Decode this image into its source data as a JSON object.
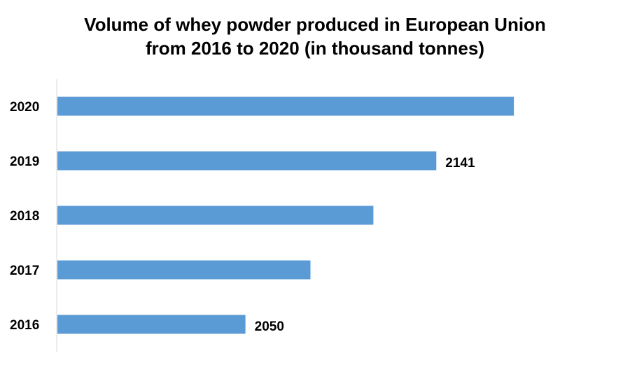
{
  "chart_data": {
    "type": "bar",
    "orientation": "horizontal",
    "title": "Volume of whey powder produced in European Union from 2016 to 2020 (in thousand tonnes)",
    "title_lines": [
      "Volume of whey powder produced in European Union",
      "from 2016 to 2020 (in thousand tonnes)"
    ],
    "categories": [
      "2020",
      "2019",
      "2018",
      "2017",
      "2016"
    ],
    "values": [
      2178,
      2141,
      2111,
      2081,
      2050
    ],
    "data_labels": [
      "",
      "2141",
      "",
      "",
      "2050"
    ],
    "xlim": [
      1960,
      2210
    ],
    "xlabel": "",
    "ylabel": "",
    "grid": false,
    "legend": "none",
    "bar_color": "#5B9BD5",
    "axis_color": "#D9D9D9"
  }
}
